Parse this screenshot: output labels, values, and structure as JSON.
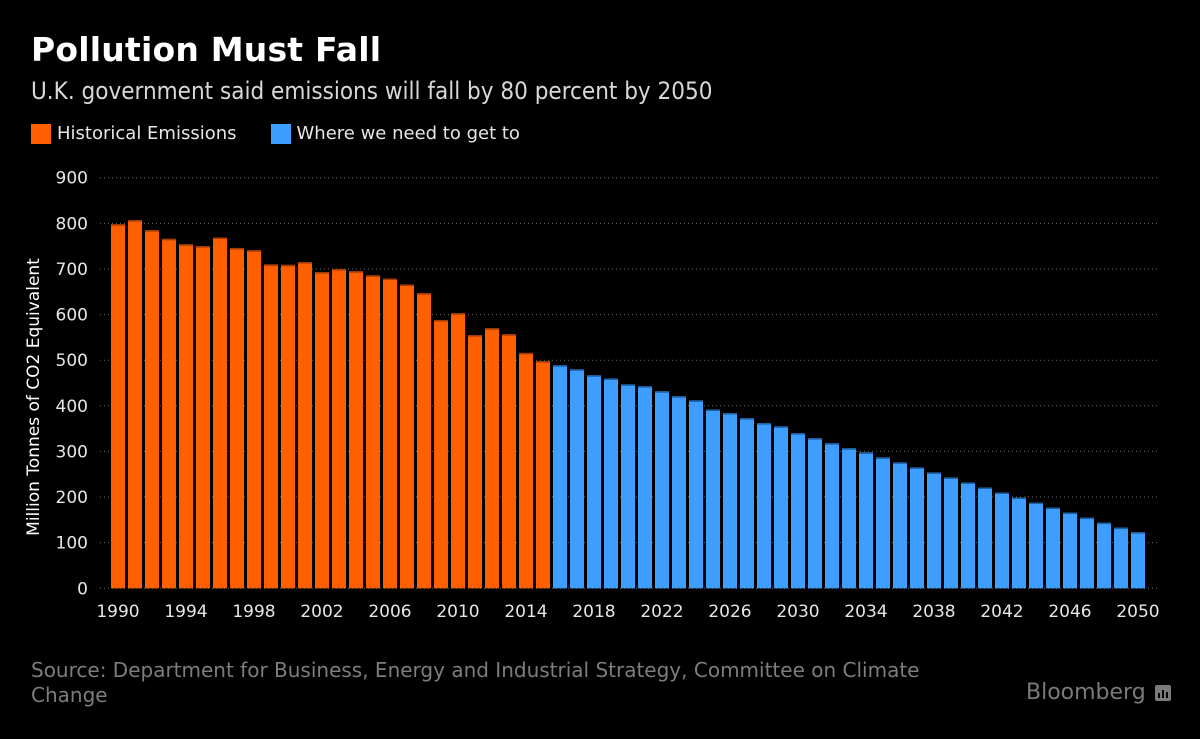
{
  "header": {
    "title": "Pollution Must Fall",
    "subtitle": "U.K. government said emissions will fall by 80 percent by 2050"
  },
  "legend": [
    {
      "label": "Historical Emissions",
      "color": "#ff5f00"
    },
    {
      "label": "Where we need to get to",
      "color": "#3d9eff"
    }
  ],
  "footer": {
    "source": "Source: Department for Business, Energy and Industrial Strategy, Committee on Climate Change",
    "brand": "Bloomberg"
  },
  "chart_data": {
    "type": "bar",
    "title": "Pollution Must Fall",
    "subtitle": "U.K. government said emissions will fall by 80 percent by 2050",
    "xlabel": "",
    "ylabel": "Million Tonnes of CO2 Equivalent",
    "ylim": [
      0,
      900
    ],
    "yticks": [
      0,
      100,
      200,
      300,
      400,
      500,
      600,
      700,
      800,
      900
    ],
    "xtick_labels": [
      "1990",
      "1994",
      "1998",
      "2002",
      "2006",
      "2010",
      "2014",
      "2018",
      "2022",
      "2026",
      "2030",
      "2034",
      "2038",
      "2042",
      "2046",
      "2050"
    ],
    "grid": true,
    "legend_position": "top-left",
    "series": [
      {
        "name": "Historical Emissions",
        "color": "#ff5f00",
        "x": [
          1990,
          1991,
          1992,
          1993,
          1994,
          1995,
          1996,
          1997,
          1998,
          1999,
          2000,
          2001,
          2002,
          2003,
          2004,
          2005,
          2006,
          2007,
          2008,
          2009,
          2010,
          2011,
          2012,
          2013,
          2014,
          2015
        ],
        "values": [
          798,
          807,
          785,
          766,
          754,
          750,
          769,
          746,
          741,
          710,
          709,
          715,
          693,
          700,
          695,
          686,
          679,
          666,
          647,
          588,
          603,
          555,
          570,
          557,
          516,
          498
        ]
      },
      {
        "name": "Where we need to get to",
        "color": "#3d9eff",
        "x": [
          2016,
          2017,
          2018,
          2019,
          2020,
          2021,
          2022,
          2023,
          2024,
          2025,
          2026,
          2027,
          2028,
          2029,
          2030,
          2031,
          2032,
          2033,
          2034,
          2035,
          2036,
          2037,
          2038,
          2039,
          2040,
          2041,
          2042,
          2043,
          2044,
          2045,
          2046,
          2047,
          2048,
          2049,
          2050
        ],
        "values": [
          489,
          480,
          467,
          460,
          447,
          443,
          432,
          421,
          412,
          392,
          384,
          373,
          362,
          355,
          340,
          329,
          318,
          307,
          298,
          287,
          276,
          265,
          254,
          243,
          232,
          221,
          210,
          199,
          188,
          177,
          166,
          155,
          144,
          133,
          123
        ]
      }
    ]
  }
}
